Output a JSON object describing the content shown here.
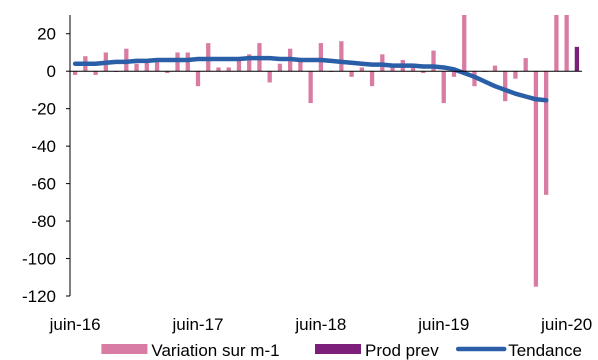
{
  "chart_data": {
    "type": "bar",
    "title": "",
    "xlabel": "",
    "ylabel": "",
    "ylim": [
      -120,
      30
    ],
    "y_ticks": [
      20,
      0,
      -20,
      -40,
      -60,
      -80,
      -100,
      -120
    ],
    "x_tick_labels": [
      "juin-16",
      "juin-17",
      "juin-18",
      "juin-19",
      "juin-20"
    ],
    "grid": false,
    "legend_position": "bottom",
    "months": [
      "2016-06",
      "2016-07",
      "2016-08",
      "2016-09",
      "2016-10",
      "2016-11",
      "2016-12",
      "2017-01",
      "2017-02",
      "2017-03",
      "2017-04",
      "2017-05",
      "2017-06",
      "2017-07",
      "2017-08",
      "2017-09",
      "2017-10",
      "2017-11",
      "2017-12",
      "2018-01",
      "2018-02",
      "2018-03",
      "2018-04",
      "2018-05",
      "2018-06",
      "2018-07",
      "2018-08",
      "2018-09",
      "2018-10",
      "2018-11",
      "2018-12",
      "2019-01",
      "2019-02",
      "2019-03",
      "2019-04",
      "2019-05",
      "2019-06",
      "2019-07",
      "2019-08",
      "2019-09",
      "2019-10",
      "2019-11",
      "2019-12",
      "2020-01",
      "2020-02",
      "2020-03",
      "2020-04",
      "2020-05",
      "2020-06",
      "2020-07"
    ],
    "series": [
      {
        "name": "Variation sur m-1",
        "type": "bar",
        "color": "#d97ca3",
        "values": [
          -2,
          8,
          -2,
          10,
          0,
          12,
          4,
          5,
          7,
          -1,
          10,
          10,
          -8,
          15,
          2,
          2,
          7,
          9,
          15,
          -6,
          4,
          12,
          5,
          -17,
          15,
          0,
          16,
          -3,
          2,
          -8,
          9,
          3,
          6,
          4,
          -1,
          11,
          -17,
          -3,
          30,
          -8,
          0,
          3,
          -16,
          -4,
          7,
          -115,
          -66,
          30,
          30,
          null
        ],
        "last_point_label": null
      },
      {
        "name": "Prod prev",
        "type": "bar",
        "color": "#7b1f7a",
        "values": [
          null,
          null,
          null,
          null,
          null,
          null,
          null,
          null,
          null,
          null,
          null,
          null,
          null,
          null,
          null,
          null,
          null,
          null,
          null,
          null,
          null,
          null,
          null,
          null,
          null,
          null,
          null,
          null,
          null,
          null,
          null,
          null,
          null,
          null,
          null,
          null,
          null,
          null,
          null,
          null,
          null,
          null,
          null,
          null,
          null,
          null,
          null,
          null,
          null,
          13
        ]
      },
      {
        "name": "Tendance",
        "type": "line",
        "color": "#2a5fa8",
        "values": [
          4,
          4,
          4,
          4.5,
          5,
          5,
          5.5,
          5.5,
          6,
          6,
          6,
          6,
          6.5,
          6.5,
          6.5,
          6.5,
          6.5,
          7,
          7,
          7,
          6.5,
          6.5,
          6,
          6,
          6,
          5.5,
          5,
          4.5,
          4,
          3.5,
          3.5,
          3,
          3,
          3,
          2.5,
          2.5,
          2,
          1,
          -1,
          -3,
          -5.5,
          -8,
          -10,
          -12,
          -13.5,
          -15,
          -15.5,
          null,
          null,
          null
        ]
      }
    ]
  }
}
